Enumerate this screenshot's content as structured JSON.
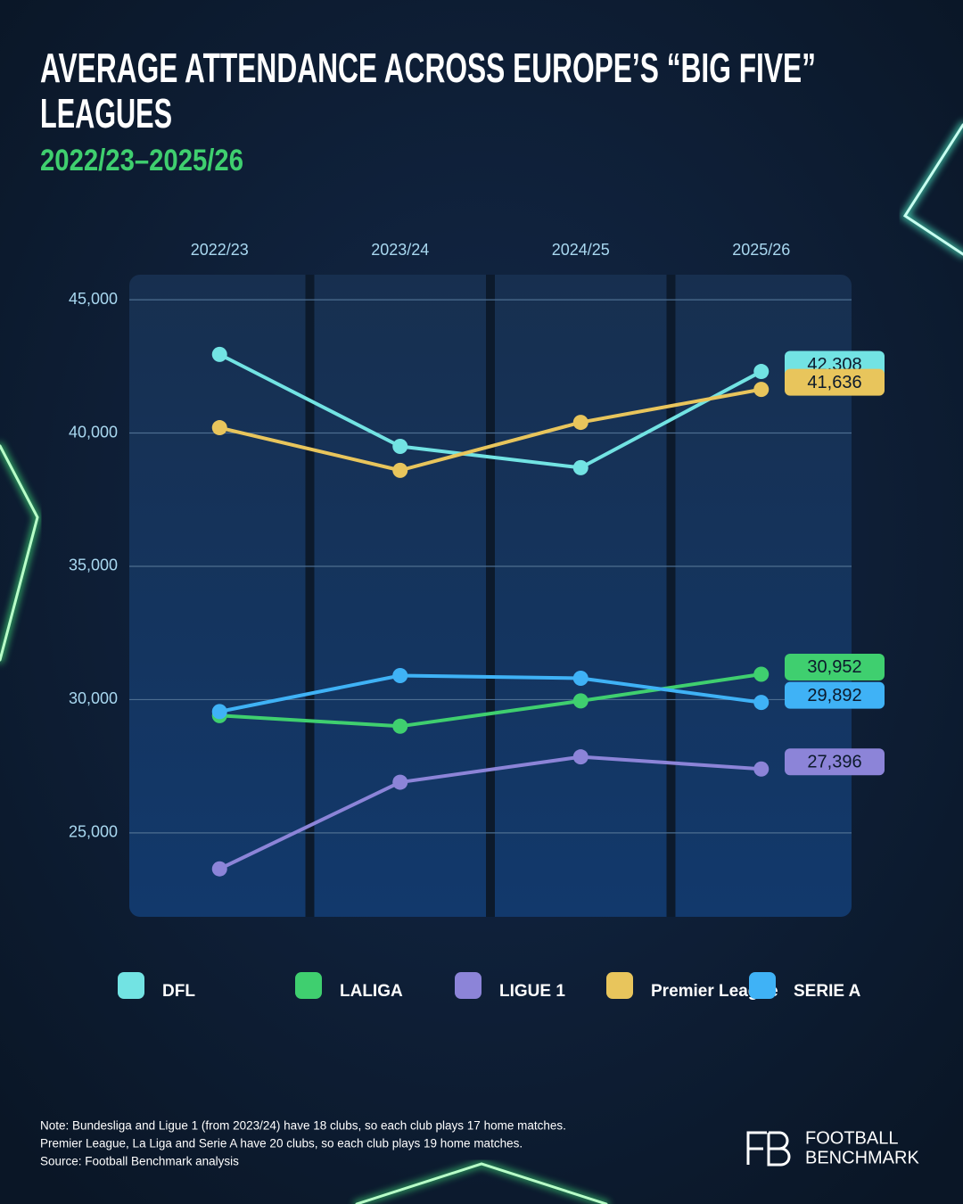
{
  "chart_data": {
    "type": "line",
    "title": [
      "AVERAGE ATTENDANCE ACROSS EUROPE’S “BIG FIVE”",
      "LEAGUES"
    ],
    "subtitle": "2022/23–2025/26",
    "categories": [
      "2022/23",
      "2023/24",
      "2024/25",
      "2025/26"
    ],
    "series": [
      {
        "name": "DFL",
        "color": "#72e3e3",
        "values": [
          42950,
          39500,
          38700,
          42308
        ],
        "value_labels": [
          null,
          null,
          null,
          "42,308"
        ]
      },
      {
        "name": "LALIGA",
        "color": "#3fcf6f",
        "values": [
          29400,
          29000,
          29950,
          30952
        ],
        "value_labels": [
          null,
          null,
          null,
          "30,952"
        ]
      },
      {
        "name": "LIGUE 1",
        "color": "#8c84d8",
        "values": [
          23650,
          26900,
          27850,
          27396
        ],
        "value_labels": [
          null,
          null,
          null,
          "27,396"
        ]
      },
      {
        "name": "Premier League",
        "color": "#e8c55c",
        "values": [
          40200,
          38600,
          40400,
          41636
        ],
        "value_labels": [
          null,
          null,
          null,
          "41,636"
        ]
      },
      {
        "name": "SERIE A",
        "color": "#3fb2f6",
        "values": [
          29550,
          30900,
          30800,
          29892
        ],
        "value_labels": [
          null,
          null,
          null,
          "29,892"
        ]
      }
    ],
    "ylim": [
      21850,
      45940
    ],
    "yticks": [
      {
        "value": 25000,
        "label": "25,000"
      },
      {
        "value": 30000,
        "label": "30,000"
      },
      {
        "value": 35000,
        "label": "35,000"
      },
      {
        "value": 40000,
        "label": "40,000"
      },
      {
        "value": 45000,
        "label": "45,000"
      }
    ],
    "grid": true
  },
  "footer": {
    "notes": [
      "Note: Bundesliga and Ligue 1 (from 2023/24) have 18 clubs, so each club plays 17 home matches.",
      "Premier League, La Liga and Serie A have 20 clubs, so each club plays 19 home matches.",
      "Source: Football Benchmark analysis"
    ],
    "brand": [
      "FOOTBALL",
      "BENCHMARK"
    ]
  }
}
